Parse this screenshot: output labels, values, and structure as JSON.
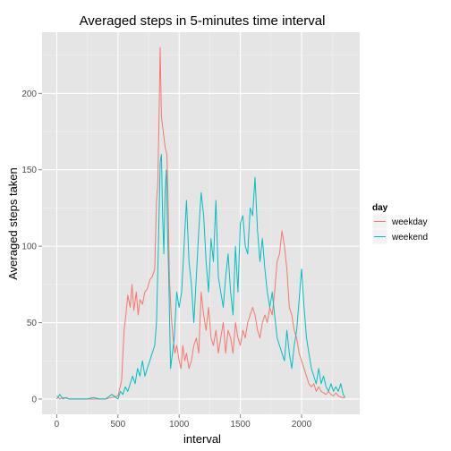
{
  "chart_data": {
    "type": "line",
    "title": "Averaged steps in 5-minutes time interval",
    "xlabel": "interval",
    "ylabel": "Averaged steps taken",
    "xlim": [
      -120,
      2475
    ],
    "ylim": [
      -10,
      240
    ],
    "x_ticks": [
      0,
      500,
      1000,
      1500,
      2000
    ],
    "y_ticks": [
      0,
      50,
      100,
      150,
      200
    ],
    "x_tick_labels": [
      "0",
      "500",
      "1000",
      "1500",
      "2000"
    ],
    "y_tick_labels": [
      "0",
      "50",
      "100",
      "150",
      "200"
    ],
    "grid": true,
    "legend": {
      "title": "day",
      "position": "right"
    },
    "series": [
      {
        "name": "weekday",
        "color": "#F8766D",
        "points": [
          [
            0,
            2
          ],
          [
            25,
            0
          ],
          [
            50,
            1
          ],
          [
            100,
            0
          ],
          [
            150,
            0
          ],
          [
            200,
            0
          ],
          [
            250,
            0
          ],
          [
            300,
            0
          ],
          [
            350,
            0
          ],
          [
            400,
            0
          ],
          [
            450,
            1
          ],
          [
            500,
            2
          ],
          [
            530,
            12
          ],
          [
            550,
            45
          ],
          [
            565,
            55
          ],
          [
            580,
            68
          ],
          [
            600,
            60
          ],
          [
            615,
            75
          ],
          [
            630,
            58
          ],
          [
            650,
            70
          ],
          [
            665,
            55
          ],
          [
            680,
            65
          ],
          [
            700,
            62
          ],
          [
            720,
            70
          ],
          [
            740,
            72
          ],
          [
            760,
            78
          ],
          [
            780,
            80
          ],
          [
            800,
            85
          ],
          [
            815,
            130
          ],
          [
            825,
            140
          ],
          [
            835,
            180
          ],
          [
            845,
            230
          ],
          [
            855,
            185
          ],
          [
            870,
            175
          ],
          [
            885,
            165
          ],
          [
            900,
            160
          ],
          [
            910,
            130
          ],
          [
            920,
            80
          ],
          [
            935,
            55
          ],
          [
            950,
            40
          ],
          [
            965,
            30
          ],
          [
            980,
            35
          ],
          [
            1000,
            25
          ],
          [
            1015,
            20
          ],
          [
            1030,
            35
          ],
          [
            1045,
            25
          ],
          [
            1060,
            30
          ],
          [
            1080,
            20
          ],
          [
            1100,
            25
          ],
          [
            1120,
            35
          ],
          [
            1140,
            40
          ],
          [
            1160,
            30
          ],
          [
            1180,
            70
          ],
          [
            1200,
            55
          ],
          [
            1220,
            45
          ],
          [
            1240,
            60
          ],
          [
            1260,
            40
          ],
          [
            1280,
            35
          ],
          [
            1300,
            45
          ],
          [
            1320,
            30
          ],
          [
            1340,
            40
          ],
          [
            1360,
            50
          ],
          [
            1380,
            30
          ],
          [
            1400,
            45
          ],
          [
            1420,
            40
          ],
          [
            1440,
            30
          ],
          [
            1460,
            50
          ],
          [
            1480,
            40
          ],
          [
            1500,
            35
          ],
          [
            1520,
            45
          ],
          [
            1540,
            40
          ],
          [
            1560,
            50
          ],
          [
            1580,
            55
          ],
          [
            1600,
            60
          ],
          [
            1620,
            55
          ],
          [
            1640,
            45
          ],
          [
            1660,
            40
          ],
          [
            1680,
            50
          ],
          [
            1700,
            55
          ],
          [
            1720,
            50
          ],
          [
            1740,
            60
          ],
          [
            1760,
            55
          ],
          [
            1780,
            70
          ],
          [
            1800,
            90
          ],
          [
            1820,
            95
          ],
          [
            1840,
            110
          ],
          [
            1860,
            100
          ],
          [
            1880,
            85
          ],
          [
            1900,
            60
          ],
          [
            1920,
            55
          ],
          [
            1940,
            45
          ],
          [
            1960,
            40
          ],
          [
            1980,
            30
          ],
          [
            2000,
            25
          ],
          [
            2020,
            20
          ],
          [
            2040,
            15
          ],
          [
            2060,
            10
          ],
          [
            2080,
            8
          ],
          [
            2100,
            10
          ],
          [
            2120,
            5
          ],
          [
            2140,
            8
          ],
          [
            2160,
            5
          ],
          [
            2180,
            4
          ],
          [
            2200,
            3
          ],
          [
            2220,
            5
          ],
          [
            2240,
            3
          ],
          [
            2260,
            2
          ],
          [
            2280,
            4
          ],
          [
            2300,
            2
          ],
          [
            2330,
            1
          ],
          [
            2355,
            1
          ]
        ]
      },
      {
        "name": "weekend",
        "color": "#00BFC4",
        "points": [
          [
            0,
            0
          ],
          [
            25,
            3
          ],
          [
            50,
            0
          ],
          [
            75,
            1
          ],
          [
            100,
            0
          ],
          [
            150,
            0
          ],
          [
            200,
            0
          ],
          [
            250,
            0
          ],
          [
            300,
            1
          ],
          [
            350,
            0
          ],
          [
            400,
            0
          ],
          [
            450,
            3
          ],
          [
            500,
            0
          ],
          [
            520,
            5
          ],
          [
            540,
            3
          ],
          [
            560,
            8
          ],
          [
            580,
            5
          ],
          [
            600,
            10
          ],
          [
            620,
            15
          ],
          [
            640,
            10
          ],
          [
            660,
            20
          ],
          [
            680,
            15
          ],
          [
            700,
            25
          ],
          [
            720,
            15
          ],
          [
            740,
            20
          ],
          [
            760,
            25
          ],
          [
            780,
            30
          ],
          [
            800,
            35
          ],
          [
            815,
            50
          ],
          [
            830,
            100
          ],
          [
            845,
            155
          ],
          [
            855,
            160
          ],
          [
            865,
            120
          ],
          [
            875,
            95
          ],
          [
            885,
            135
          ],
          [
            895,
            150
          ],
          [
            905,
            110
          ],
          [
            915,
            80
          ],
          [
            930,
            20
          ],
          [
            945,
            30
          ],
          [
            960,
            40
          ],
          [
            980,
            70
          ],
          [
            1000,
            60
          ],
          [
            1020,
            70
          ],
          [
            1040,
            100
          ],
          [
            1060,
            130
          ],
          [
            1080,
            90
          ],
          [
            1100,
            75
          ],
          [
            1120,
            50
          ],
          [
            1140,
            80
          ],
          [
            1160,
            110
          ],
          [
            1180,
            135
          ],
          [
            1200,
            120
          ],
          [
            1220,
            90
          ],
          [
            1240,
            70
          ],
          [
            1260,
            105
          ],
          [
            1280,
            90
          ],
          [
            1300,
            130
          ],
          [
            1320,
            80
          ],
          [
            1340,
            70
          ],
          [
            1360,
            60
          ],
          [
            1380,
            80
          ],
          [
            1400,
            95
          ],
          [
            1420,
            70
          ],
          [
            1440,
            55
          ],
          [
            1460,
            100
          ],
          [
            1480,
            70
          ],
          [
            1500,
            115
          ],
          [
            1520,
            120
          ],
          [
            1540,
            100
          ],
          [
            1560,
            95
          ],
          [
            1580,
            125
          ],
          [
            1600,
            120
          ],
          [
            1620,
            145
          ],
          [
            1640,
            110
          ],
          [
            1660,
            90
          ],
          [
            1680,
            105
          ],
          [
            1700,
            85
          ],
          [
            1720,
            70
          ],
          [
            1740,
            60
          ],
          [
            1760,
            70
          ],
          [
            1780,
            55
          ],
          [
            1800,
            40
          ],
          [
            1820,
            35
          ],
          [
            1840,
            30
          ],
          [
            1860,
            25
          ],
          [
            1880,
            45
          ],
          [
            1900,
            30
          ],
          [
            1920,
            20
          ],
          [
            1940,
            35
          ],
          [
            1960,
            45
          ],
          [
            1980,
            65
          ],
          [
            2000,
            85
          ],
          [
            2020,
            60
          ],
          [
            2040,
            40
          ],
          [
            2060,
            30
          ],
          [
            2080,
            20
          ],
          [
            2100,
            15
          ],
          [
            2120,
            10
          ],
          [
            2140,
            20
          ],
          [
            2160,
            10
          ],
          [
            2180,
            15
          ],
          [
            2200,
            8
          ],
          [
            2220,
            5
          ],
          [
            2240,
            10
          ],
          [
            2260,
            5
          ],
          [
            2280,
            8
          ],
          [
            2300,
            5
          ],
          [
            2320,
            10
          ],
          [
            2340,
            3
          ],
          [
            2355,
            1
          ]
        ]
      }
    ]
  }
}
